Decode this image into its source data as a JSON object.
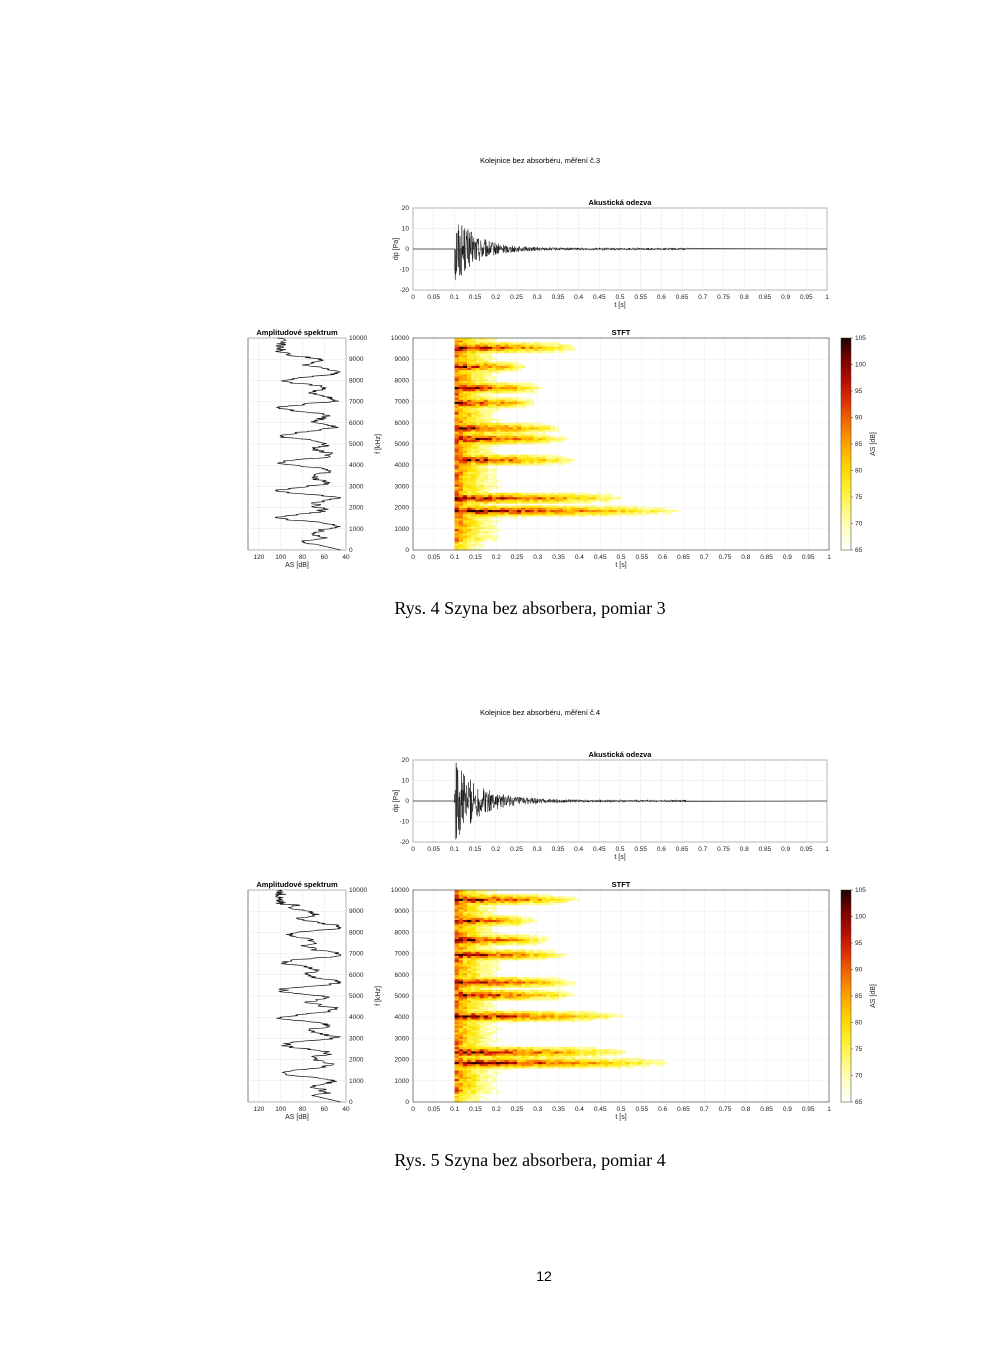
{
  "figures": [
    {
      "id": "fig1",
      "supertitle": "Kolejnice bez absorbéru, měření č.3",
      "caption": "Rys. 4 Szyna bez absorbera, pomiar 3",
      "chart_data": [
        {
          "type": "line",
          "title": "Akustická odezva",
          "xlabel": "t [s]",
          "ylabel": "dp [Pa]",
          "xlim": [
            0,
            1
          ],
          "ylim": [
            -20,
            20
          ],
          "xticks": [
            "0",
            "0.05",
            "0.1",
            "0.15",
            "0.2",
            "0.25",
            "0.3",
            "0.35",
            "0.4",
            "0.45",
            "0.5",
            "0.55",
            "0.6",
            "0.65",
            "0.7",
            "0.75",
            "0.8",
            "0.85",
            "0.9",
            "0.95",
            "1"
          ],
          "yticks": [
            "20",
            "10",
            "0",
            "-10",
            "-20"
          ],
          "onset_s": 0.1,
          "peak_pa": 18,
          "decay_s": 0.05,
          "grid": true
        },
        {
          "type": "line",
          "title": "Amplitudové spektrum",
          "xlabel": "AS [dB]",
          "x_reversed": true,
          "xlim": [
            40,
            130
          ],
          "xticks": [
            "120",
            "100",
            "80",
            "60",
            "40"
          ],
          "yticks_right": [
            "10000",
            "9000",
            "8000",
            "7000",
            "6000",
            "5000",
            "4000",
            "3000",
            "2000",
            "1000",
            "0"
          ],
          "ylim": [
            0,
            10000
          ],
          "grid": true
        },
        {
          "type": "heatmap",
          "title": "STFT",
          "xlabel": "t [s]",
          "ylabel": "f [kHz]",
          "xlim": [
            0,
            1
          ],
          "ylim": [
            0,
            10000
          ],
          "xticks": [
            "0",
            "0.05",
            "0.1",
            "0.15",
            "0.2",
            "0.25",
            "0.3",
            "0.35",
            "0.4",
            "0.45",
            "0.5",
            "0.55",
            "0.6",
            "0.65",
            "0.7",
            "0.75",
            "0.8",
            "0.85",
            "0.9",
            "0.95",
            "1"
          ],
          "yticks": [
            "10000",
            "9000",
            "8000",
            "7000",
            "6000",
            "5000",
            "4000",
            "3000",
            "2000",
            "1000",
            "0"
          ],
          "colorbar_label": "AS [dB]",
          "colorbar_ticks": [
            "105",
            "100",
            "95",
            "90",
            "85",
            "80",
            "75",
            "70",
            "65"
          ],
          "colorbar_range": [
            65,
            105
          ],
          "bands_hz": [
            9500,
            8600,
            7600,
            6900,
            5700,
            5200,
            4200,
            2400,
            1800
          ],
          "band_end_s": [
            0.41,
            0.28,
            0.32,
            0.3,
            0.36,
            0.38,
            0.4,
            0.53,
            0.66
          ],
          "grid": true
        }
      ]
    },
    {
      "id": "fig2",
      "supertitle": "Kolejnice bez absorbéru, měření č.4",
      "caption": "Rys. 5 Szyna bez absorbera, pomiar 4",
      "chart_data": [
        {
          "type": "line",
          "title": "Akustická odezva",
          "xlabel": "t [s]",
          "ylabel": "dp [Pa]",
          "xlim": [
            0,
            1
          ],
          "ylim": [
            -20,
            20
          ],
          "xticks": [
            "0",
            "0.05",
            "0.1",
            "0.15",
            "0.2",
            "0.25",
            "0.3",
            "0.35",
            "0.4",
            "0.45",
            "0.5",
            "0.55",
            "0.6",
            "0.65",
            "0.7",
            "0.75",
            "0.8",
            "0.85",
            "0.9",
            "0.95",
            "1"
          ],
          "yticks": [
            "20",
            "10",
            "0",
            "-10",
            "-20"
          ],
          "onset_s": 0.1,
          "peak_pa": 20,
          "decay_s": 0.06,
          "grid": true
        },
        {
          "type": "line",
          "title": "Amplitudové spektrum",
          "xlabel": "AS [dB]",
          "x_reversed": true,
          "xlim": [
            40,
            130
          ],
          "xticks": [
            "120",
            "100",
            "80",
            "60",
            "40"
          ],
          "yticks_right": [
            "10000",
            "9000",
            "8000",
            "7000",
            "6000",
            "5000",
            "4000",
            "3000",
            "2000",
            "1000",
            "0"
          ],
          "ylim": [
            0,
            10000
          ],
          "grid": true
        },
        {
          "type": "heatmap",
          "title": "STFT",
          "xlabel": "t [s]",
          "ylabel": "f [kHz]",
          "xlim": [
            0,
            1
          ],
          "ylim": [
            0,
            10000
          ],
          "xticks": [
            "0",
            "0.05",
            "0.1",
            "0.15",
            "0.2",
            "0.25",
            "0.3",
            "0.35",
            "0.4",
            "0.45",
            "0.5",
            "0.55",
            "0.6",
            "0.65",
            "0.7",
            "0.75",
            "0.8",
            "0.85",
            "0.9",
            "0.95",
            "1"
          ],
          "yticks": [
            "10000",
            "9000",
            "8000",
            "7000",
            "6000",
            "5000",
            "4000",
            "3000",
            "2000",
            "1000",
            "0"
          ],
          "colorbar_label": "AS [dB]",
          "colorbar_ticks": [
            "105",
            "100",
            "95",
            "90",
            "85",
            "80",
            "75",
            "70",
            "65"
          ],
          "colorbar_range": [
            65,
            105
          ],
          "bands_hz": [
            9500,
            8500,
            7600,
            6900,
            5600,
            5000,
            4000,
            2300,
            1800
          ],
          "band_end_s": [
            0.41,
            0.3,
            0.34,
            0.38,
            0.4,
            0.4,
            0.52,
            0.54,
            0.64
          ],
          "grid": true
        }
      ]
    }
  ],
  "page_number": "12"
}
